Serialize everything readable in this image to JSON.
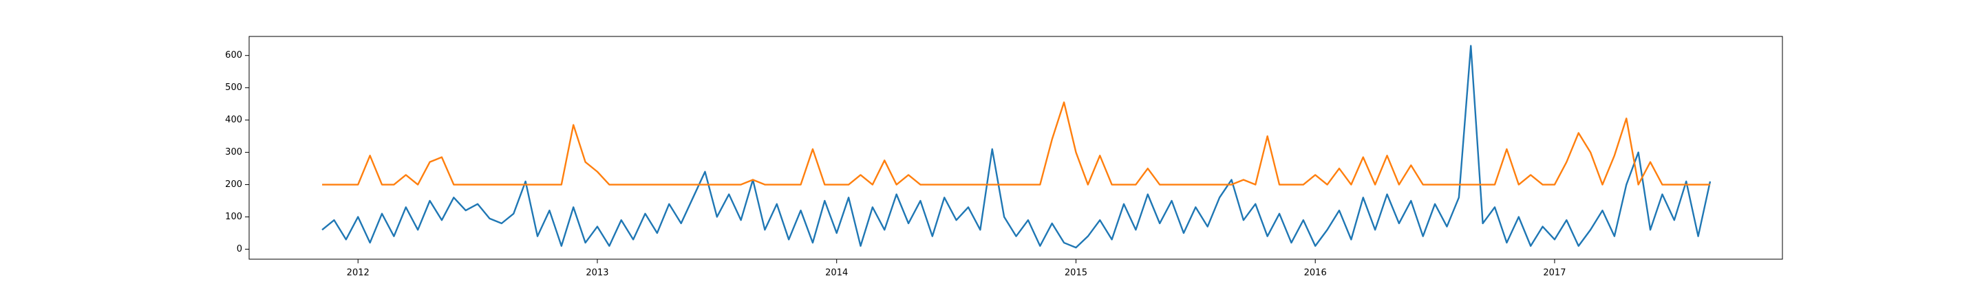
{
  "chart_data": {
    "type": "line",
    "x": [
      2011.85,
      2011.9,
      2011.95,
      2012.0,
      2012.05,
      2012.1,
      2012.15,
      2012.2,
      2012.25,
      2012.3,
      2012.35,
      2012.4,
      2012.45,
      2012.5,
      2012.55,
      2012.6,
      2012.65,
      2012.7,
      2012.75,
      2012.8,
      2012.85,
      2012.9,
      2012.95,
      2013.0,
      2013.05,
      2013.1,
      2013.15,
      2013.2,
      2013.25,
      2013.3,
      2013.35,
      2013.4,
      2013.45,
      2013.5,
      2013.55,
      2013.6,
      2013.65,
      2013.7,
      2013.75,
      2013.8,
      2013.85,
      2013.9,
      2013.95,
      2014.0,
      2014.05,
      2014.1,
      2014.15,
      2014.2,
      2014.25,
      2014.3,
      2014.35,
      2014.4,
      2014.45,
      2014.5,
      2014.55,
      2014.6,
      2014.65,
      2014.7,
      2014.75,
      2014.8,
      2014.85,
      2014.9,
      2014.95,
      2015.0,
      2015.05,
      2015.1,
      2015.15,
      2015.2,
      2015.25,
      2015.3,
      2015.35,
      2015.4,
      2015.45,
      2015.5,
      2015.55,
      2015.6,
      2015.65,
      2015.7,
      2015.75,
      2015.8,
      2015.85,
      2015.9,
      2015.95,
      2016.0,
      2016.05,
      2016.1,
      2016.15,
      2016.2,
      2016.25,
      2016.3,
      2016.35,
      2016.4,
      2016.45,
      2016.5,
      2016.55,
      2016.6,
      2016.65,
      2016.7,
      2016.75,
      2016.8,
      2016.85,
      2016.9,
      2016.95,
      2017.0,
      2017.05,
      2017.1,
      2017.15,
      2017.2,
      2017.25,
      2017.3,
      2017.35,
      2017.4,
      2017.45,
      2017.5,
      2017.55,
      2017.6,
      2017.65
    ],
    "series": [
      {
        "color": "#1f77b4",
        "values": [
          60,
          90,
          30,
          100,
          20,
          110,
          40,
          130,
          60,
          150,
          90,
          160,
          120,
          140,
          95,
          80,
          110,
          210,
          40,
          120,
          10,
          130,
          20,
          70,
          10,
          90,
          30,
          110,
          50,
          140,
          80,
          160,
          240,
          100,
          170,
          90,
          215,
          60,
          140,
          30,
          120,
          20,
          150,
          50,
          160,
          10,
          130,
          60,
          170,
          80,
          150,
          40,
          160,
          90,
          130,
          60,
          310,
          100,
          40,
          90,
          10,
          80,
          20,
          5,
          40,
          90,
          30,
          140,
          60,
          170,
          80,
          150,
          50,
          130,
          70,
          160,
          215,
          90,
          140,
          40,
          110,
          20,
          90,
          10,
          60,
          120,
          30,
          160,
          60,
          170,
          80,
          150,
          40,
          140,
          70,
          160,
          630,
          80,
          130,
          20,
          100,
          10,
          70,
          30,
          90,
          10,
          60,
          120,
          40,
          200,
          300,
          60,
          170,
          90,
          210,
          40,
          210
        ]
      },
      {
        "color": "#ff7f0e",
        "values": [
          200,
          200,
          200,
          200,
          290,
          200,
          200,
          230,
          200,
          270,
          285,
          200,
          200,
          200,
          200,
          200,
          200,
          200,
          200,
          200,
          200,
          385,
          270,
          240,
          200,
          200,
          200,
          200,
          200,
          200,
          200,
          200,
          200,
          200,
          200,
          200,
          215,
          200,
          200,
          200,
          200,
          310,
          200,
          200,
          200,
          230,
          200,
          275,
          200,
          230,
          200,
          200,
          200,
          200,
          200,
          200,
          200,
          200,
          200,
          200,
          200,
          340,
          455,
          300,
          200,
          290,
          200,
          200,
          200,
          250,
          200,
          200,
          200,
          200,
          200,
          200,
          200,
          215,
          200,
          350,
          200,
          200,
          200,
          230,
          200,
          250,
          200,
          285,
          200,
          290,
          200,
          260,
          200,
          200,
          200,
          200,
          200,
          200,
          200,
          310,
          200,
          230,
          200,
          200,
          270,
          360,
          300,
          200,
          290,
          405,
          200,
          270,
          200,
          200,
          200,
          200,
          200
        ]
      }
    ],
    "xlim": [
      2011.545,
      2017.952
    ],
    "xticks": [
      2012,
      2013,
      2014,
      2015,
      2016,
      2017
    ],
    "ylim": [
      -31,
      659
    ],
    "yticks": [
      0,
      100,
      200,
      300,
      400,
      500,
      600
    ]
  }
}
